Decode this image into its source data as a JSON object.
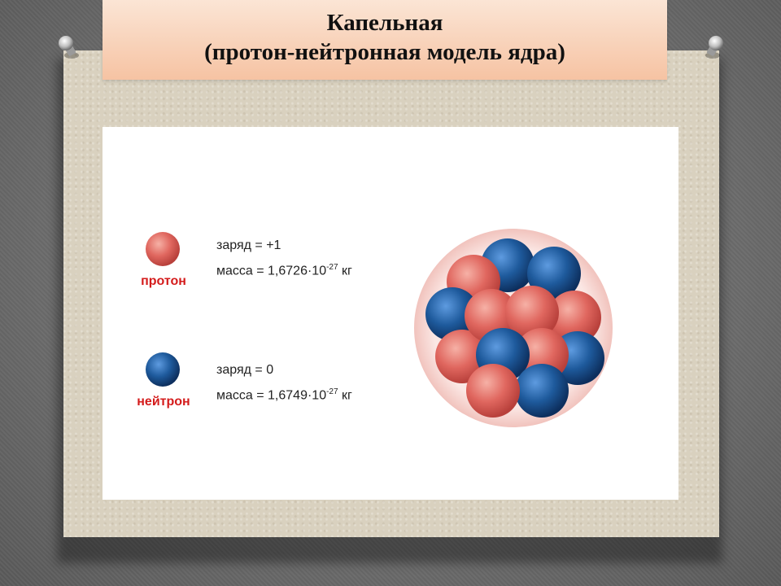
{
  "title": {
    "line1": "Капельная",
    "line2": "(протон-нейтронная модель ядра)"
  },
  "legend": {
    "proton": {
      "label": "протон",
      "charge": "заряд  = +1",
      "mass_prefix": "масса = 1,6726·10",
      "mass_exp": "-27",
      "mass_unit": " кг",
      "color": "#e0675f"
    },
    "neutron": {
      "label": "нейтрон",
      "charge": "заряд  = 0",
      "mass_prefix": "масса = 1,6749·10",
      "mass_exp": "-27",
      "mass_unit": " кг",
      "color": "#1e5a9c"
    }
  },
  "colors": {
    "label_red": "#d41c1c",
    "banner_top": "#fbe5d5",
    "banner_bottom": "#f6c3a3",
    "board": "#d9d1bf",
    "nucleus_halo": "#f6d0cb"
  }
}
